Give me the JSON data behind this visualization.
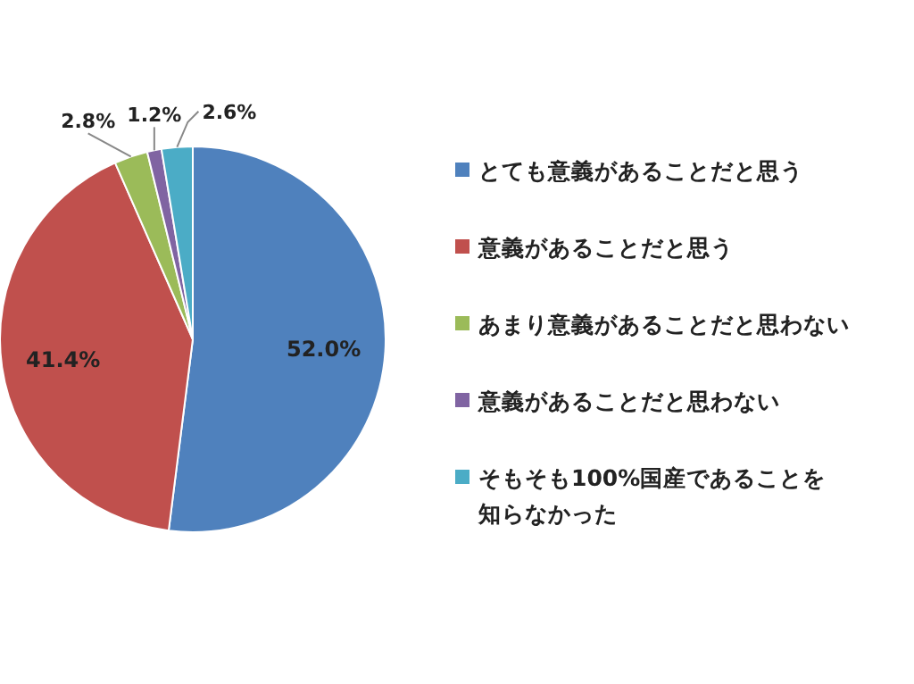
{
  "chart_data": {
    "type": "pie",
    "categories": [
      "とても意義があることだと思う",
      "意義があることだと思う",
      "あまり意義があることだと思わない",
      "意義があることだと思わない",
      "そもそも100%国産であることを知らなかった"
    ],
    "values": [
      52.0,
      41.4,
      2.8,
      1.2,
      2.6
    ],
    "colors": [
      "#4f81bd",
      "#c0504d",
      "#9bbb59",
      "#8064a2",
      "#4bacc6"
    ],
    "value_labels": [
      "52.0%",
      "41.4%",
      "2.8%",
      "1.2%",
      "2.6%"
    ],
    "legend": "right"
  }
}
